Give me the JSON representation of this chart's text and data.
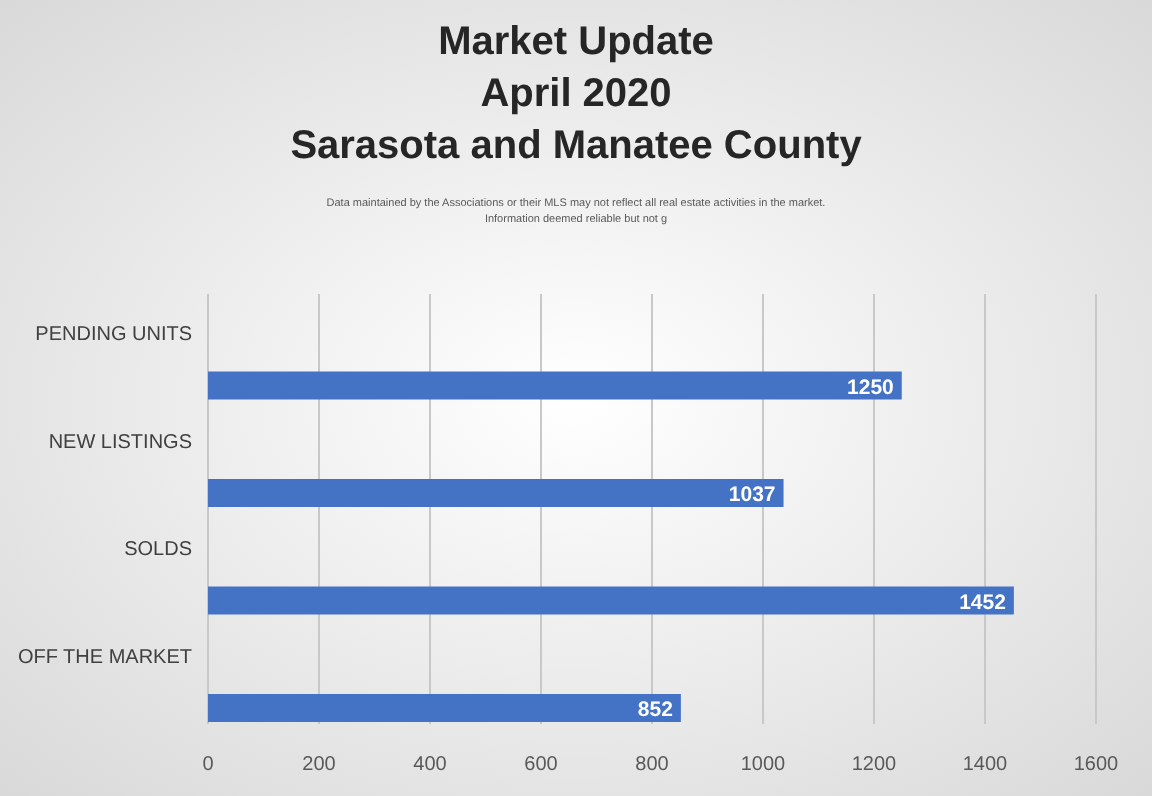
{
  "chart_data": {
    "type": "bar",
    "orientation": "horizontal",
    "title": "Market Update\nApril 2020\nSarasota and Manatee County",
    "subtitle": "Data maintained by the Associations or their MLS may not reflect all real estate activities in the market.\nInformation deemed reliable but not g",
    "categories": [
      "PENDING UNITS",
      "NEW LISTINGS",
      "SOLDS",
      "OFF THE MARKET"
    ],
    "values": [
      1250,
      1037,
      1452,
      852
    ],
    "color": "#4472c4",
    "xlim": [
      0,
      1600
    ],
    "xticks": [
      0,
      200,
      400,
      600,
      800,
      1000,
      1200,
      1400,
      1600
    ],
    "grid": "x",
    "data_labels": true
  }
}
